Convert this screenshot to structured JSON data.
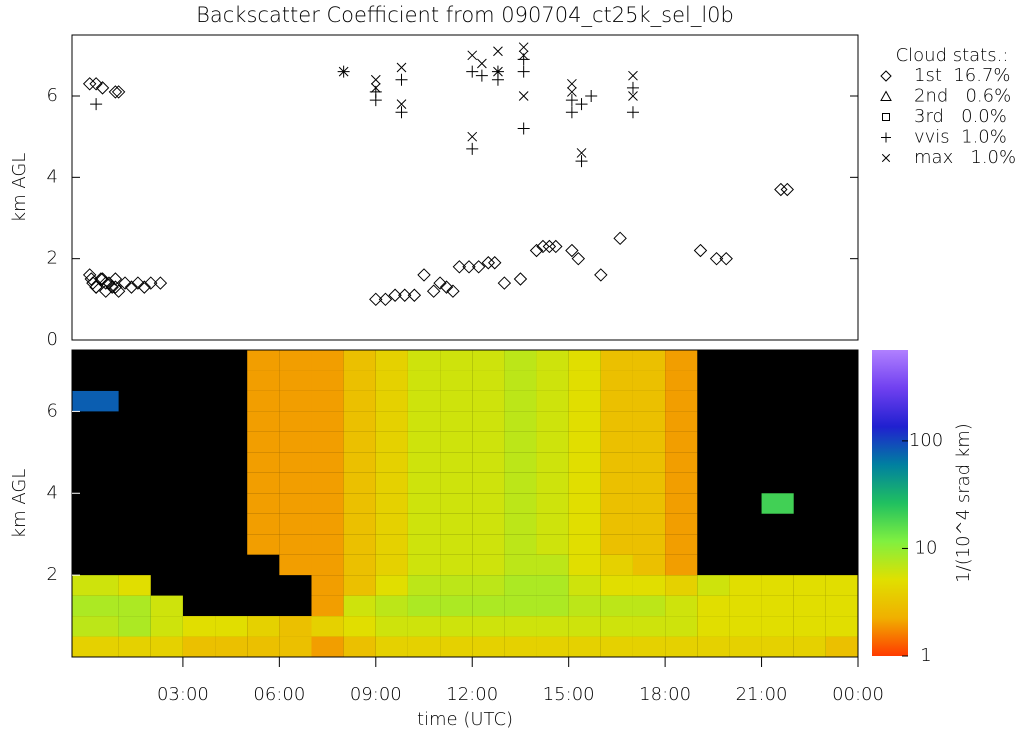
{
  "chart_data": [
    {
      "type": "scatter",
      "title": "Backscatter Coefficient from 090704_ct25k_sel_l0b",
      "ylabel": "km AGL",
      "xlim": [
        -0.45,
        24
      ],
      "ylim": [
        0,
        7.5
      ],
      "yticks": [
        0,
        2,
        4,
        6
      ],
      "legend_title": "Cloud stats.:",
      "legend": "right",
      "color": "#000000",
      "series": [
        {
          "name": "1st  16.7%",
          "marker": "diamond",
          "x": [
            0.1,
            0.2,
            0.3,
            0.5,
            0.6,
            0.7,
            0.9,
            1.0,
            1.2,
            1.4,
            1.6,
            1.8,
            2.0,
            2.3,
            0.15,
            0.3,
            0.45,
            0.6,
            0.8,
            0.9,
            9.0,
            9.3,
            9.6,
            9.9,
            10.2,
            10.5,
            10.8,
            11.0,
            11.2,
            11.4,
            11.6,
            11.9,
            12.2,
            12.5,
            12.7,
            13.0,
            13.5,
            14.0,
            14.2,
            14.4,
            14.6,
            15.1,
            15.3,
            16.0,
            16.6,
            19.1,
            19.6,
            19.9,
            21.6,
            21.8,
            0.1,
            0.3,
            0.5,
            0.9,
            1.0
          ],
          "y": [
            1.6,
            1.4,
            1.3,
            1.5,
            1.2,
            1.4,
            1.3,
            1.2,
            1.4,
            1.3,
            1.4,
            1.3,
            1.4,
            1.4,
            1.5,
            1.3,
            1.5,
            1.4,
            1.3,
            1.5,
            1.0,
            1.0,
            1.1,
            1.1,
            1.1,
            1.6,
            1.2,
            1.4,
            1.3,
            1.2,
            1.8,
            1.8,
            1.8,
            1.9,
            1.9,
            1.4,
            1.5,
            2.2,
            2.3,
            2.3,
            2.3,
            2.2,
            2.0,
            1.6,
            2.5,
            2.2,
            2.0,
            2.0,
            3.7,
            3.7,
            6.3,
            6.3,
            6.2,
            6.1,
            6.1
          ]
        },
        {
          "name": "2nd   0.6%",
          "marker": "triangle",
          "x": [],
          "y": []
        },
        {
          "name": "3rd   0.0%",
          "marker": "square",
          "x": [],
          "y": []
        },
        {
          "name": "vvis  1.0%",
          "marker": "plus",
          "x": [
            0.3,
            8.0,
            9.0,
            9.0,
            9.8,
            9.8,
            12.0,
            12.0,
            12.3,
            12.8,
            12.8,
            13.6,
            13.6,
            13.6,
            15.1,
            15.1,
            15.4,
            15.4,
            15.7,
            17.0,
            17.0
          ],
          "y": [
            5.8,
            6.6,
            5.9,
            6.1,
            5.6,
            6.4,
            4.7,
            6.6,
            6.5,
            6.4,
            6.6,
            5.2,
            6.6,
            6.9,
            5.6,
            5.9,
            4.4,
            5.8,
            6.0,
            5.6,
            6.2
          ]
        },
        {
          "name": "max   1.0%",
          "marker": "x",
          "x": [
            8.0,
            9.0,
            9.0,
            9.8,
            9.8,
            12.0,
            12.0,
            12.3,
            12.8,
            12.8,
            13.6,
            13.6,
            13.6,
            15.1,
            15.1,
            15.4,
            17.0,
            17.0
          ],
          "y": [
            6.6,
            6.4,
            6.2,
            5.8,
            6.7,
            5.0,
            7.0,
            6.8,
            7.1,
            6.6,
            6.0,
            7.2,
            7.0,
            6.3,
            6.1,
            4.6,
            6.5,
            6.0
          ]
        }
      ]
    },
    {
      "type": "heatmap",
      "xlabel": "time (UTC)",
      "ylabel": "km AGL",
      "xlim": [
        -0.45,
        24
      ],
      "ylim": [
        0,
        7.5
      ],
      "xticks": [
        {
          "value": 3,
          "label": "03:00"
        },
        {
          "value": 6,
          "label": "06:00"
        },
        {
          "value": 9,
          "label": "09:00"
        },
        {
          "value": 12,
          "label": "12:00"
        },
        {
          "value": 15,
          "label": "15:00"
        },
        {
          "value": 18,
          "label": "18:00"
        },
        {
          "value": 21,
          "label": "21:00"
        },
        {
          "value": 24,
          "label": "00:00"
        }
      ],
      "yticks": [
        2,
        4,
        6
      ],
      "background": "#000000",
      "colorbar_label": "1/(10^4 srad km)",
      "clim": [
        1,
        700
      ],
      "cticks": [
        1,
        10,
        100
      ],
      "log_colorbar": true,
      "colormap": [
        "#ff3a00",
        "#f0b000",
        "#e0e000",
        "#80f040",
        "#20c060",
        "#0080a0",
        "#2020d0",
        "#7040f0",
        "#b080ff"
      ],
      "xbins": [
        -0.45,
        1,
        2,
        3,
        4,
        5,
        6,
        7,
        8,
        9,
        10,
        11,
        12,
        13,
        14,
        15,
        16,
        17,
        18,
        19,
        20,
        21,
        22,
        23,
        24
      ],
      "ybins": [
        0,
        0.5,
        1,
        1.5,
        2,
        2.5,
        3,
        3.5,
        4,
        4.5,
        5,
        5.5,
        6,
        6.5,
        7,
        7.5
      ],
      "z": [
        [
          4,
          4,
          4,
          3,
          3,
          3,
          3,
          2,
          3,
          4,
          4,
          4,
          4,
          4,
          4,
          4,
          4,
          4,
          4,
          4,
          4,
          4,
          4,
          3
        ],
        [
          7,
          8,
          6,
          5,
          5,
          4,
          3,
          4,
          5,
          6,
          6,
          6,
          6,
          6,
          6,
          6,
          6,
          6,
          6,
          5,
          5,
          5,
          5,
          5
        ],
        [
          8,
          8,
          6,
          null,
          null,
          null,
          null,
          2,
          6,
          7,
          8,
          8,
          8,
          8,
          8,
          7,
          7,
          7,
          6,
          5,
          5,
          5,
          5,
          5
        ],
        [
          6,
          5,
          null,
          null,
          null,
          null,
          null,
          2,
          3,
          5,
          7,
          7,
          7,
          8,
          8,
          6,
          5,
          5,
          4,
          6,
          5,
          5,
          5,
          5
        ],
        [
          null,
          null,
          null,
          null,
          null,
          null,
          2,
          2,
          3,
          4,
          6,
          6,
          6,
          7,
          7,
          5,
          4,
          3,
          2,
          null,
          null,
          null,
          null,
          null
        ],
        [
          null,
          null,
          null,
          null,
          null,
          2,
          2,
          2,
          3,
          4,
          6,
          6,
          6,
          7,
          6,
          5,
          3,
          3,
          2,
          null,
          null,
          null,
          null,
          null
        ],
        [
          null,
          null,
          null,
          null,
          null,
          2,
          2,
          2,
          3,
          4,
          6,
          6,
          6,
          7,
          6,
          5,
          3,
          3,
          2,
          null,
          null,
          null,
          null,
          null
        ],
        [
          null,
          null,
          null,
          null,
          null,
          2,
          2,
          2,
          3,
          4,
          6,
          6,
          6,
          7,
          6,
          5,
          3,
          3,
          2,
          null,
          null,
          20,
          null,
          null
        ],
        [
          null,
          null,
          null,
          null,
          null,
          2,
          2,
          2,
          3,
          4,
          6,
          6,
          6,
          7,
          6,
          5,
          3,
          3,
          2,
          null,
          null,
          null,
          null,
          null
        ],
        [
          null,
          null,
          null,
          null,
          null,
          2,
          2,
          2,
          3,
          4,
          6,
          6,
          6,
          7,
          6,
          5,
          3,
          3,
          2,
          null,
          null,
          null,
          null,
          null
        ],
        [
          null,
          null,
          null,
          null,
          null,
          2,
          2,
          2,
          3,
          4,
          6,
          6,
          6,
          7,
          6,
          5,
          3,
          3,
          2,
          null,
          null,
          null,
          null,
          null
        ],
        [
          null,
          null,
          null,
          null,
          null,
          2,
          2,
          2,
          3,
          4,
          6,
          6,
          6,
          7,
          6,
          5,
          3,
          3,
          2,
          null,
          null,
          null,
          null,
          null
        ],
        [
          80,
          null,
          null,
          null,
          null,
          2,
          2,
          2,
          3,
          4,
          6,
          6,
          6,
          7,
          6,
          5,
          3,
          3,
          2,
          null,
          null,
          null,
          null,
          null
        ],
        [
          null,
          null,
          null,
          null,
          null,
          2,
          2,
          2,
          3,
          4,
          6,
          6,
          6,
          7,
          6,
          5,
          3,
          3,
          2,
          null,
          null,
          null,
          null,
          null
        ],
        [
          null,
          null,
          null,
          null,
          null,
          2,
          2,
          2,
          3,
          4,
          6,
          6,
          6,
          7,
          6,
          5,
          3,
          3,
          2,
          null,
          null,
          null,
          null,
          null
        ]
      ]
    }
  ]
}
